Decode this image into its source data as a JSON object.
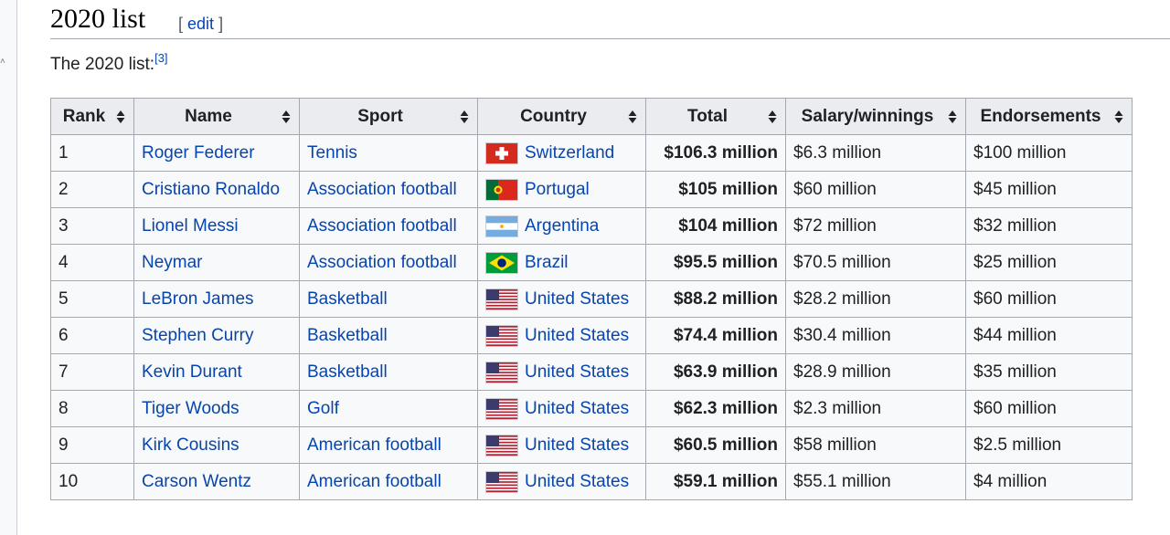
{
  "heading": {
    "title": "2020 list",
    "edit_open": "[",
    "edit_label": "edit",
    "edit_close": "]"
  },
  "intro": {
    "text": "The 2020 list:",
    "ref": "[3]"
  },
  "table": {
    "columns": [
      "Rank",
      "Name",
      "Sport",
      "Country",
      "Total",
      "Salary/winnings",
      "Endorsements"
    ],
    "rows": [
      {
        "rank": "1",
        "name": "Roger Federer",
        "sport": "Tennis",
        "country": "Switzerland",
        "flag": "switzerland-flag-icon",
        "total": "$106.3 million",
        "salary": "$6.3 million",
        "endorsements": "$100 million"
      },
      {
        "rank": "2",
        "name": "Cristiano Ronaldo",
        "sport": "Association football",
        "country": "Portugal",
        "flag": "portugal-flag-icon",
        "total": "$105 million",
        "salary": "$60 million",
        "endorsements": "$45 million"
      },
      {
        "rank": "3",
        "name": "Lionel Messi",
        "sport": "Association football",
        "country": "Argentina",
        "flag": "argentina-flag-icon",
        "total": "$104 million",
        "salary": "$72 million",
        "endorsements": "$32 million"
      },
      {
        "rank": "4",
        "name": "Neymar",
        "sport": "Association football",
        "country": "Brazil",
        "flag": "brazil-flag-icon",
        "total": "$95.5 million",
        "salary": "$70.5 million",
        "endorsements": "$25 million"
      },
      {
        "rank": "5",
        "name": "LeBron James",
        "sport": "Basketball",
        "country": "United States",
        "flag": "usa-flag-icon",
        "total": "$88.2 million",
        "salary": "$28.2 million",
        "endorsements": "$60 million"
      },
      {
        "rank": "6",
        "name": "Stephen Curry",
        "sport": "Basketball",
        "country": "United States",
        "flag": "usa-flag-icon",
        "total": "$74.4 million",
        "salary": "$30.4 million",
        "endorsements": "$44 million"
      },
      {
        "rank": "7",
        "name": "Kevin Durant",
        "sport": "Basketball",
        "country": "United States",
        "flag": "usa-flag-icon",
        "total": "$63.9 million",
        "salary": "$28.9 million",
        "endorsements": "$35 million"
      },
      {
        "rank": "8",
        "name": "Tiger Woods",
        "sport": "Golf",
        "country": "United States",
        "flag": "usa-flag-icon",
        "total": "$62.3 million",
        "salary": "$2.3 million",
        "endorsements": "$60 million"
      },
      {
        "rank": "9",
        "name": "Kirk Cousins",
        "sport": "American football",
        "country": "United States",
        "flag": "usa-flag-icon",
        "total": "$60.5 million",
        "salary": "$58 million",
        "endorsements": "$2.5 million"
      },
      {
        "rank": "10",
        "name": "Carson Wentz",
        "sport": "American football",
        "country": "United States",
        "flag": "usa-flag-icon",
        "total": "$59.1 million",
        "salary": "$55.1 million",
        "endorsements": "$4 million"
      }
    ]
  },
  "colors": {
    "link": "#0645ad",
    "header_bg": "#eaecf0",
    "cell_bg": "#f8f9fa",
    "border": "#a2a9b1"
  }
}
